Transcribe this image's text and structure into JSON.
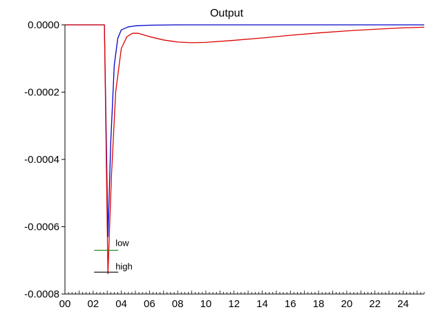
{
  "chart_data": {
    "type": "line",
    "title": "Output",
    "xlabel": "",
    "ylabel": "",
    "xlim": [
      0,
      25.5
    ],
    "ylim": [
      -0.0008,
      0
    ],
    "grid": false,
    "x_ticks": [
      0,
      2,
      4,
      6,
      8,
      10,
      12,
      14,
      16,
      18,
      20,
      22,
      24
    ],
    "x_tick_labels": [
      "00",
      "02",
      "04",
      "06",
      "08",
      "10",
      "12",
      "14",
      "16",
      "18",
      "20",
      "22",
      "24"
    ],
    "y_ticks": [
      0,
      -0.0002,
      -0.0004,
      -0.0006,
      -0.0008
    ],
    "y_tick_labels": [
      "0.0000",
      "-0.0002",
      "-0.0004",
      "-0.0006",
      "-0.0008"
    ],
    "series": [
      {
        "color": "#0000cc",
        "x": [
          0,
          2.8,
          3.05,
          3.25,
          3.5,
          3.75,
          4.0,
          4.5,
          5.0,
          6.0,
          8.0,
          12.0,
          18.0,
          25.5
        ],
        "y": [
          0,
          0,
          -0.00063,
          -0.00035,
          -0.00012,
          -4e-05,
          -1.5e-05,
          -6e-06,
          -3e-06,
          -1e-06,
          0,
          0,
          0,
          0
        ]
      },
      {
        "color": "#dd0000",
        "x": [
          0,
          2.8,
          3.05,
          3.3,
          3.6,
          4.0,
          4.4,
          4.8,
          5.2,
          6.0,
          7.0,
          8.0,
          9.0,
          10.0,
          12.0,
          14.0,
          16.0,
          18.0,
          20.0,
          22.0,
          24.0,
          25.5
        ],
        "y": [
          0,
          0,
          -0.00074,
          -0.00045,
          -0.0002,
          -7e-05,
          -3.5e-05,
          -2.5e-05,
          -2.5e-05,
          -3.5e-05,
          -4.5e-05,
          -5.1e-05,
          -5.3e-05,
          -5.2e-05,
          -4.6e-05,
          -3.9e-05,
          -3.1e-05,
          -2.4e-05,
          -1.8e-05,
          -1.3e-05,
          -9e-06,
          -7e-06
        ]
      }
    ],
    "markers": [
      {
        "label": "low",
        "x": 3.05,
        "y": -0.00067,
        "color": "#228b22"
      },
      {
        "label": "high",
        "x": 3.05,
        "y": -0.000735,
        "color": "#000000"
      }
    ],
    "colors": {
      "axis": "#000000",
      "background": "#ffffff"
    }
  }
}
